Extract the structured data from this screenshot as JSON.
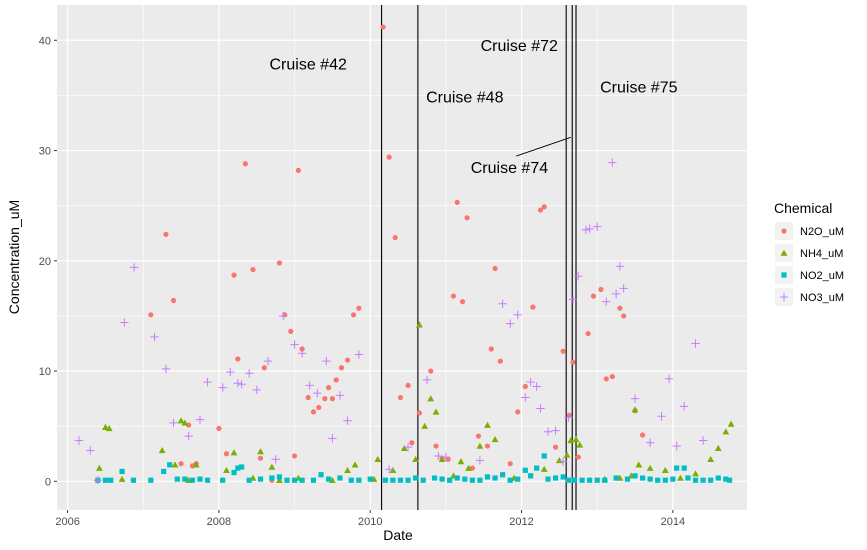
{
  "chart_data": {
    "type": "scatter",
    "xlabel": "Date",
    "ylabel": "Concentration_uM",
    "xlim": [
      2005.86,
      2014.98
    ],
    "ylim": [
      -2.6,
      43.2
    ],
    "x_ticks": [
      2006,
      2008,
      2010,
      2012,
      2014
    ],
    "x_tick_labels": [
      "2006",
      "2008",
      "2010",
      "2012",
      "2014"
    ],
    "y_ticks": [
      0,
      10,
      20,
      30,
      40
    ],
    "y_tick_labels": [
      "0",
      "10",
      "20",
      "30",
      "40"
    ],
    "grid": true,
    "legend": {
      "title": "Chemical",
      "position": "right"
    },
    "series": [
      {
        "name": "N2O_uM",
        "color": "#F8766D",
        "shape": "circle",
        "points": [
          [
            2007.1,
            15.1
          ],
          [
            2007.3,
            22.4
          ],
          [
            2007.4,
            16.4
          ],
          [
            2007.5,
            1.6
          ],
          [
            2007.6,
            5.1
          ],
          [
            2007.65,
            1.4
          ],
          [
            2007.7,
            1.6
          ],
          [
            2008.0,
            4.8
          ],
          [
            2008.1,
            2.5
          ],
          [
            2008.2,
            18.7
          ],
          [
            2008.25,
            11.1
          ],
          [
            2008.35,
            28.8
          ],
          [
            2008.45,
            19.2
          ],
          [
            2008.55,
            2.1
          ],
          [
            2008.6,
            10.3
          ],
          [
            2008.7,
            0.1
          ],
          [
            2008.8,
            19.8
          ],
          [
            2008.87,
            15.1
          ],
          [
            2008.95,
            13.6
          ],
          [
            2009.0,
            2.3
          ],
          [
            2009.05,
            28.2
          ],
          [
            2009.1,
            12.0
          ],
          [
            2009.18,
            7.6
          ],
          [
            2009.25,
            6.3
          ],
          [
            2009.32,
            6.7
          ],
          [
            2009.4,
            7.5
          ],
          [
            2009.45,
            8.5
          ],
          [
            2009.5,
            7.5
          ],
          [
            2009.55,
            9.2
          ],
          [
            2009.62,
            10.3
          ],
          [
            2009.7,
            11.0
          ],
          [
            2009.78,
            15.1
          ],
          [
            2009.85,
            15.7
          ],
          [
            2010.17,
            41.2
          ],
          [
            2010.25,
            29.4
          ],
          [
            2010.33,
            22.1
          ],
          [
            2010.4,
            7.6
          ],
          [
            2010.5,
            8.7
          ],
          [
            2010.55,
            3.5
          ],
          [
            2010.65,
            6.2
          ],
          [
            2010.8,
            10.0
          ],
          [
            2010.87,
            3.2
          ],
          [
            2010.95,
            2.1
          ],
          [
            2011.03,
            2.0
          ],
          [
            2011.1,
            16.8
          ],
          [
            2011.15,
            25.3
          ],
          [
            2011.22,
            16.3
          ],
          [
            2011.28,
            23.9
          ],
          [
            2011.35,
            1.2
          ],
          [
            2011.43,
            4.1
          ],
          [
            2011.55,
            3.2
          ],
          [
            2011.6,
            12.0
          ],
          [
            2011.65,
            19.3
          ],
          [
            2011.72,
            10.9
          ],
          [
            2011.85,
            1.6
          ],
          [
            2011.95,
            6.3
          ],
          [
            2012.05,
            8.6
          ],
          [
            2012.15,
            15.8
          ],
          [
            2012.25,
            24.6
          ],
          [
            2012.3,
            24.9
          ],
          [
            2012.45,
            3.1
          ],
          [
            2012.55,
            11.8
          ],
          [
            2012.63,
            6.0
          ],
          [
            2012.68,
            10.8
          ],
          [
            2012.75,
            2.2
          ],
          [
            2012.88,
            13.4
          ],
          [
            2012.95,
            16.8
          ],
          [
            2013.05,
            17.4
          ],
          [
            2013.12,
            9.3
          ],
          [
            2013.2,
            9.5
          ],
          [
            2013.3,
            15.7
          ],
          [
            2013.35,
            15.0
          ],
          [
            2013.5,
            6.4
          ],
          [
            2013.6,
            4.2
          ]
        ]
      },
      {
        "name": "NH4_uM",
        "color": "#7CAE00",
        "shape": "triangle",
        "points": [
          [
            2006.42,
            1.2
          ],
          [
            2006.5,
            4.9
          ],
          [
            2006.55,
            4.8
          ],
          [
            2006.72,
            0.2
          ],
          [
            2007.25,
            2.8
          ],
          [
            2007.42,
            1.5
          ],
          [
            2007.5,
            5.5
          ],
          [
            2007.55,
            5.3
          ],
          [
            2007.6,
            0.1
          ],
          [
            2007.7,
            1.5
          ],
          [
            2008.1,
            1.0
          ],
          [
            2008.2,
            2.6
          ],
          [
            2008.45,
            0.3
          ],
          [
            2008.55,
            2.7
          ],
          [
            2008.7,
            1.3
          ],
          [
            2008.8,
            0.1
          ],
          [
            2009.05,
            0.3
          ],
          [
            2009.5,
            0.1
          ],
          [
            2009.7,
            1.0
          ],
          [
            2009.8,
            1.5
          ],
          [
            2010.05,
            0.2
          ],
          [
            2010.1,
            2.0
          ],
          [
            2010.3,
            1.0
          ],
          [
            2010.45,
            3.0
          ],
          [
            2010.6,
            2.0
          ],
          [
            2010.65,
            14.2
          ],
          [
            2010.72,
            5.0
          ],
          [
            2010.8,
            7.5
          ],
          [
            2010.87,
            6.3
          ],
          [
            2010.95,
            2.0
          ],
          [
            2011.1,
            0.5
          ],
          [
            2011.2,
            1.8
          ],
          [
            2011.3,
            1.2
          ],
          [
            2011.45,
            3.2
          ],
          [
            2011.55,
            5.1
          ],
          [
            2011.65,
            3.8
          ],
          [
            2011.9,
            0.3
          ],
          [
            2012.3,
            1.1
          ],
          [
            2012.5,
            1.9
          ],
          [
            2012.6,
            2.4
          ],
          [
            2012.65,
            3.7
          ],
          [
            2012.72,
            3.8
          ],
          [
            2012.77,
            3.3
          ],
          [
            2013.1,
            0.2
          ],
          [
            2013.3,
            0.3
          ],
          [
            2013.45,
            0.5
          ],
          [
            2013.5,
            6.5
          ],
          [
            2013.55,
            1.5
          ],
          [
            2013.7,
            1.2
          ],
          [
            2013.9,
            1.0
          ],
          [
            2014.1,
            0.3
          ],
          [
            2014.3,
            0.7
          ],
          [
            2014.5,
            2.0
          ],
          [
            2014.6,
            3.0
          ],
          [
            2014.7,
            4.5
          ],
          [
            2014.77,
            5.2
          ]
        ]
      },
      {
        "name": "NO2_uM",
        "color": "#00BFC4",
        "shape": "square",
        "points": [
          [
            2006.4,
            0.1
          ],
          [
            2006.5,
            0.1
          ],
          [
            2006.57,
            0.1
          ],
          [
            2006.72,
            0.9
          ],
          [
            2006.87,
            0.1
          ],
          [
            2007.1,
            0.1
          ],
          [
            2007.27,
            0.9
          ],
          [
            2007.35,
            1.5
          ],
          [
            2007.45,
            0.2
          ],
          [
            2007.55,
            0.2
          ],
          [
            2007.65,
            0.1
          ],
          [
            2007.75,
            0.2
          ],
          [
            2007.85,
            0.1
          ],
          [
            2008.05,
            0.1
          ],
          [
            2008.2,
            0.8
          ],
          [
            2008.25,
            1.2
          ],
          [
            2008.3,
            1.3
          ],
          [
            2008.4,
            0.1
          ],
          [
            2008.55,
            0.2
          ],
          [
            2008.7,
            0.3
          ],
          [
            2008.8,
            0.4
          ],
          [
            2008.9,
            0.1
          ],
          [
            2009.0,
            0.1
          ],
          [
            2009.1,
            0.1
          ],
          [
            2009.25,
            0.1
          ],
          [
            2009.35,
            0.6
          ],
          [
            2009.45,
            0.2
          ],
          [
            2009.6,
            0.3
          ],
          [
            2009.75,
            0.1
          ],
          [
            2009.85,
            0.1
          ],
          [
            2010.0,
            0.2
          ],
          [
            2010.2,
            0.1
          ],
          [
            2010.3,
            0.1
          ],
          [
            2010.4,
            0.1
          ],
          [
            2010.5,
            0.1
          ],
          [
            2010.6,
            0.3
          ],
          [
            2010.7,
            0.1
          ],
          [
            2010.85,
            0.3
          ],
          [
            2010.95,
            0.2
          ],
          [
            2011.05,
            0.1
          ],
          [
            2011.15,
            0.3
          ],
          [
            2011.25,
            0.2
          ],
          [
            2011.35,
            0.1
          ],
          [
            2011.45,
            0.1
          ],
          [
            2011.55,
            0.4
          ],
          [
            2011.65,
            0.3
          ],
          [
            2011.75,
            0.6
          ],
          [
            2011.85,
            0.1
          ],
          [
            2011.95,
            0.2
          ],
          [
            2012.05,
            1.0
          ],
          [
            2012.12,
            0.5
          ],
          [
            2012.2,
            1.2
          ],
          [
            2012.3,
            2.3
          ],
          [
            2012.35,
            0.2
          ],
          [
            2012.45,
            0.3
          ],
          [
            2012.55,
            0.4
          ],
          [
            2012.62,
            0.1
          ],
          [
            2012.7,
            0.1
          ],
          [
            2012.8,
            0.1
          ],
          [
            2012.9,
            0.1
          ],
          [
            2013.0,
            0.1
          ],
          [
            2013.1,
            0.1
          ],
          [
            2013.25,
            0.3
          ],
          [
            2013.4,
            0.2
          ],
          [
            2013.5,
            0.5
          ],
          [
            2013.6,
            0.3
          ],
          [
            2013.7,
            0.2
          ],
          [
            2013.8,
            0.1
          ],
          [
            2013.9,
            0.1
          ],
          [
            2014.0,
            0.2
          ],
          [
            2014.05,
            1.2
          ],
          [
            2014.15,
            1.2
          ],
          [
            2014.2,
            0.3
          ],
          [
            2014.3,
            0.1
          ],
          [
            2014.4,
            0.1
          ],
          [
            2014.5,
            0.1
          ],
          [
            2014.6,
            0.3
          ],
          [
            2014.7,
            0.2
          ],
          [
            2014.75,
            0.1
          ]
        ]
      },
      {
        "name": "NO3_uM",
        "color": "#C77CFF",
        "shape": "plus",
        "points": [
          [
            2006.15,
            3.7
          ],
          [
            2006.3,
            2.8
          ],
          [
            2006.4,
            0.1
          ],
          [
            2006.75,
            14.4
          ],
          [
            2006.88,
            19.4
          ],
          [
            2007.15,
            13.1
          ],
          [
            2007.3,
            10.2
          ],
          [
            2007.4,
            5.3
          ],
          [
            2007.6,
            4.1
          ],
          [
            2007.75,
            5.6
          ],
          [
            2007.85,
            9.0
          ],
          [
            2008.05,
            8.5
          ],
          [
            2008.15,
            9.9
          ],
          [
            2008.25,
            8.9
          ],
          [
            2008.3,
            8.8
          ],
          [
            2008.4,
            9.8
          ],
          [
            2008.5,
            8.3
          ],
          [
            2008.65,
            10.9
          ],
          [
            2008.75,
            2.0
          ],
          [
            2008.85,
            15.0
          ],
          [
            2009.0,
            12.4
          ],
          [
            2009.1,
            11.6
          ],
          [
            2009.2,
            8.7
          ],
          [
            2009.3,
            8.0
          ],
          [
            2009.42,
            10.9
          ],
          [
            2009.5,
            3.9
          ],
          [
            2009.6,
            7.8
          ],
          [
            2009.7,
            5.5
          ],
          [
            2009.85,
            11.5
          ],
          [
            2010.25,
            1.1
          ],
          [
            2010.5,
            3.1
          ],
          [
            2010.75,
            9.2
          ],
          [
            2010.9,
            2.3
          ],
          [
            2011.0,
            2.2
          ],
          [
            2011.45,
            1.9
          ],
          [
            2011.75,
            16.1
          ],
          [
            2011.85,
            14.3
          ],
          [
            2011.95,
            15.1
          ],
          [
            2012.05,
            7.6
          ],
          [
            2012.12,
            9.0
          ],
          [
            2012.2,
            8.6
          ],
          [
            2012.25,
            6.6
          ],
          [
            2012.35,
            4.5
          ],
          [
            2012.45,
            4.6
          ],
          [
            2012.55,
            1.8
          ],
          [
            2012.62,
            5.8
          ],
          [
            2012.68,
            16.5
          ],
          [
            2012.75,
            18.6
          ],
          [
            2012.85,
            22.8
          ],
          [
            2012.9,
            22.9
          ],
          [
            2013.0,
            23.1
          ],
          [
            2013.12,
            16.3
          ],
          [
            2013.2,
            28.9
          ],
          [
            2013.25,
            17.0
          ],
          [
            2013.3,
            19.5
          ],
          [
            2013.35,
            17.5
          ],
          [
            2013.5,
            7.5
          ],
          [
            2013.7,
            3.5
          ],
          [
            2013.85,
            5.9
          ],
          [
            2013.95,
            9.3
          ],
          [
            2014.05,
            3.2
          ],
          [
            2014.15,
            6.8
          ],
          [
            2014.3,
            12.5
          ],
          [
            2014.4,
            3.7
          ]
        ]
      }
    ],
    "vlines": [
      2010.15,
      2010.63,
      2012.59,
      2012.67,
      2012.72
    ],
    "annotations": [
      {
        "text": "Cruise #42",
        "x": 2009.18,
        "y": 37.8
      },
      {
        "text": "Cruise #48",
        "x": 2011.25,
        "y": 34.8
      },
      {
        "text": "Cruise #72",
        "x": 2011.97,
        "y": 39.5
      },
      {
        "text": "Cruise #75",
        "x": 2013.55,
        "y": 35.7
      },
      {
        "text": "Cruise #74",
        "x": 2011.84,
        "y": 28.4
      }
    ],
    "segments": [
      {
        "x1": 2011.93,
        "y1": 29.5,
        "x2": 2012.65,
        "y2": 31.2
      }
    ]
  }
}
